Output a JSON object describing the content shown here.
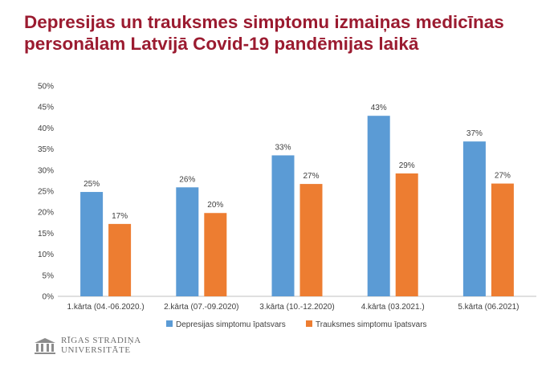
{
  "title": {
    "line1": "Depresijas un trauksmes simptomu izmaiņas medicīnas",
    "line2": "personālam Latvijā Covid-19 pandēmijas laikā"
  },
  "logo": {
    "line1": "RĪGAS STRADIŅA",
    "line2": "UNIVERSITĀTE"
  },
  "chart_data": {
    "type": "bar",
    "categories": [
      "1.kārta (04.-06.2020.)",
      "2.kārta (07.-09.2020)",
      "3.kārta (10.-12.2020)",
      "4.kārta (03.2021.)",
      "5.kārta (06.2021)"
    ],
    "series": [
      {
        "name": "Depresijas simptomu īpatsvars",
        "values": [
          25,
          26,
          33,
          43,
          37
        ],
        "labels": [
          "25%",
          "26%",
          "33%",
          "43%",
          "37%"
        ],
        "plot_values": [
          24.8,
          25.9,
          33.5,
          42.9,
          36.8
        ],
        "color": "#5b9bd5"
      },
      {
        "name": "Trauksmes simptomu īpatsvars",
        "values": [
          17,
          20,
          27,
          29,
          27
        ],
        "labels": [
          "17%",
          "20%",
          "27%",
          "29%",
          "27%"
        ],
        "plot_values": [
          17.2,
          19.8,
          26.7,
          29.2,
          26.8
        ],
        "color": "#ed7d31"
      }
    ],
    "ylim": [
      0,
      50
    ],
    "yticks": [
      0,
      5,
      10,
      15,
      20,
      25,
      30,
      35,
      40,
      45,
      50
    ],
    "ytick_labels": [
      "0%",
      "5%",
      "10%",
      "15%",
      "20%",
      "25%",
      "30%",
      "35%",
      "40%",
      "45%",
      "50%"
    ],
    "legend_position": "bottom",
    "grid": false
  },
  "colors": {
    "title": "#9b1b30",
    "depression": "#5b9bd5",
    "anxiety": "#ed7d31",
    "axis": "#bfbfbf",
    "text": "#404040"
  },
  "icons": {
    "logo": "university-logo-icon"
  }
}
